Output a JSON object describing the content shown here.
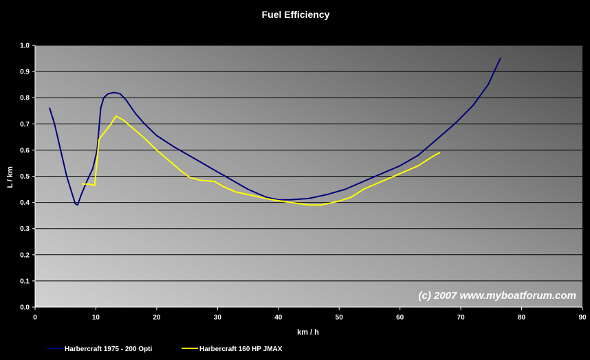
{
  "chart_data": {
    "type": "line",
    "title": "Fuel Efficiency",
    "xlabel": "km / h",
    "ylabel": "L / km",
    "xlim": [
      0,
      90
    ],
    "ylim": [
      0,
      1.0
    ],
    "x_ticks": [
      "0",
      "10",
      "20",
      "30",
      "40",
      "50",
      "60",
      "70",
      "80",
      "90"
    ],
    "y_ticks": [
      "0.0",
      "0.1",
      "0.2",
      "0.3",
      "0.4",
      "0.5",
      "0.6",
      "0.7",
      "0.8",
      "0.9",
      "1.0"
    ],
    "grid": "horizontal",
    "legend_position": "bottom",
    "annotation": "(c) 2007 www.myboatforum.com",
    "series": [
      {
        "name": "Harbercraft 1975 - 200 Opti",
        "color": "#00007a",
        "points": [
          [
            2.4,
            0.76
          ],
          [
            3.2,
            0.7
          ],
          [
            4.2,
            0.6
          ],
          [
            5.2,
            0.5
          ],
          [
            6.0,
            0.44
          ],
          [
            6.6,
            0.395
          ],
          [
            7.0,
            0.39
          ],
          [
            7.6,
            0.43
          ],
          [
            8.5,
            0.48
          ],
          [
            9.5,
            0.53
          ],
          [
            10.2,
            0.6
          ],
          [
            10.8,
            0.76
          ],
          [
            11.3,
            0.8
          ],
          [
            12.0,
            0.815
          ],
          [
            13.0,
            0.82
          ],
          [
            14.0,
            0.815
          ],
          [
            15.0,
            0.79
          ],
          [
            16.5,
            0.74
          ],
          [
            18.0,
            0.7
          ],
          [
            20.0,
            0.655
          ],
          [
            23.0,
            0.61
          ],
          [
            26.0,
            0.57
          ],
          [
            29.0,
            0.53
          ],
          [
            32.0,
            0.49
          ],
          [
            35.0,
            0.45
          ],
          [
            38.0,
            0.42
          ],
          [
            40.0,
            0.41
          ],
          [
            42.0,
            0.41
          ],
          [
            45.0,
            0.415
          ],
          [
            48.0,
            0.43
          ],
          [
            51.0,
            0.45
          ],
          [
            54.0,
            0.48
          ],
          [
            57.0,
            0.51
          ],
          [
            60.0,
            0.54
          ],
          [
            63.0,
            0.58
          ],
          [
            66.0,
            0.64
          ],
          [
            69.0,
            0.7
          ],
          [
            72.0,
            0.77
          ],
          [
            74.5,
            0.85
          ],
          [
            76.5,
            0.95
          ]
        ]
      },
      {
        "name": "Harbercraft 160 HP JMAX",
        "color": "#ffff00",
        "points": [
          [
            7.8,
            0.47
          ],
          [
            8.8,
            0.47
          ],
          [
            9.8,
            0.465
          ],
          [
            10.5,
            0.64
          ],
          [
            11.5,
            0.67
          ],
          [
            12.5,
            0.7
          ],
          [
            13.3,
            0.73
          ],
          [
            14.5,
            0.715
          ],
          [
            16.0,
            0.685
          ],
          [
            18.0,
            0.645
          ],
          [
            20.0,
            0.6
          ],
          [
            22.0,
            0.56
          ],
          [
            24.0,
            0.52
          ],
          [
            25.5,
            0.495
          ],
          [
            27.0,
            0.485
          ],
          [
            29.5,
            0.48
          ],
          [
            31.0,
            0.46
          ],
          [
            33.0,
            0.44
          ],
          [
            36.0,
            0.425
          ],
          [
            39.0,
            0.41
          ],
          [
            42.0,
            0.4
          ],
          [
            45.0,
            0.39
          ],
          [
            47.0,
            0.39
          ],
          [
            50.0,
            0.405
          ],
          [
            52.0,
            0.42
          ],
          [
            54.0,
            0.45
          ],
          [
            57.0,
            0.48
          ],
          [
            60.0,
            0.51
          ],
          [
            63.0,
            0.54
          ],
          [
            65.0,
            0.57
          ],
          [
            66.5,
            0.59
          ]
        ]
      }
    ]
  }
}
